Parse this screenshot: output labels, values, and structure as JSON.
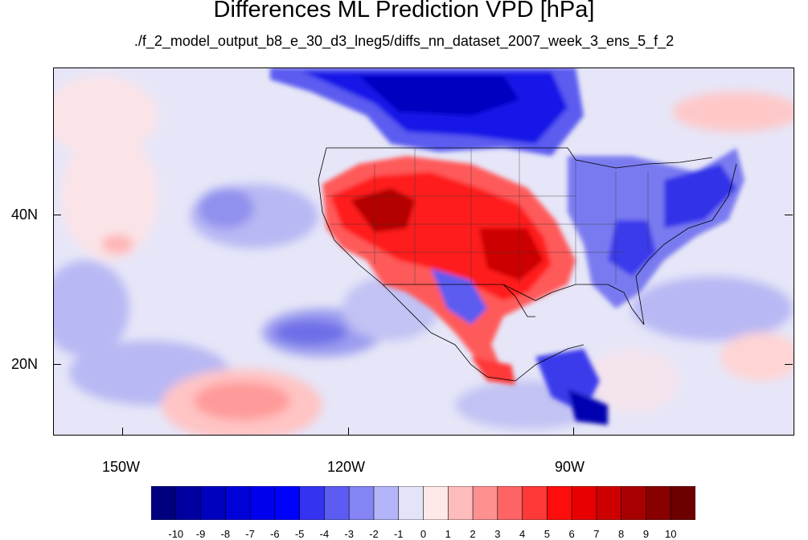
{
  "title": "Differences ML Prediction VPD [hPa]",
  "subtitle": "./f_2_model_output_b8_e_30_d3_lneg5/diffs_nn_dataset_2007_week_3_ens_5_f_2",
  "axes": {
    "lat_labels": [
      "40N",
      "20N"
    ],
    "lon_labels": [
      "150W",
      "120W",
      "90W"
    ]
  },
  "colorbar": {
    "labels": [
      "-10",
      "-9",
      "-8",
      "-7",
      "-6",
      "-5",
      "-4",
      "-3",
      "-2",
      "-1",
      "0",
      "1",
      "2",
      "3",
      "4",
      "5",
      "6",
      "7",
      "8",
      "9",
      "10"
    ],
    "colors": [
      "#00007f",
      "#0000a0",
      "#0000bf",
      "#0000d8",
      "#0000ef",
      "#0000ff",
      "#3434f0",
      "#5c5cf2",
      "#8484f4",
      "#b4b4f8",
      "#e4e4f8",
      "#ffe8e8",
      "#ffbcbc",
      "#ff9090",
      "#ff6464",
      "#ff3838",
      "#ff0c0c",
      "#e80000",
      "#cc0000",
      "#a80000",
      "#880000",
      "#6c0000"
    ]
  }
}
